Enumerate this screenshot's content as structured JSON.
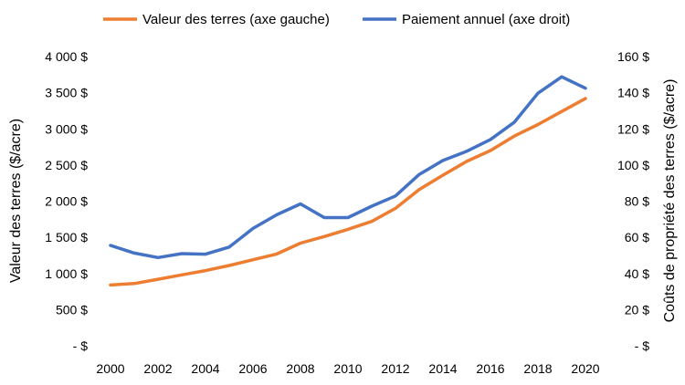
{
  "chart_data": {
    "type": "line",
    "title": "",
    "x": [
      2000,
      2001,
      2002,
      2003,
      2004,
      2005,
      2006,
      2007,
      2008,
      2009,
      2010,
      2011,
      2012,
      2013,
      2014,
      2015,
      2016,
      2017,
      2018,
      2019,
      2020
    ],
    "x_ticks": [
      "2000",
      "2002",
      "2004",
      "2006",
      "2008",
      "2010",
      "2012",
      "2014",
      "2016",
      "2018",
      "2020"
    ],
    "xlim": [
      2000,
      2020
    ],
    "ylabel_left": "Valeur des terres ($/acre)",
    "ylabel_right": "Coûts de propriété des terres ($/acre)",
    "ylim_left": [
      0,
      4000
    ],
    "ylim_right": [
      0,
      160
    ],
    "y_ticks_left": [
      "- $",
      "500 $",
      "1 000 $",
      "1 500 $",
      "2 000 $",
      "2 500 $",
      "3 000 $",
      "3 500 $",
      "4 000 $"
    ],
    "y_ticks_right": [
      "- $",
      "20 $",
      "40 $",
      "60 $",
      "80 $",
      "100 $",
      "120 $",
      "140 $",
      "160 $"
    ],
    "grid": false,
    "legend_position": "top",
    "series": [
      {
        "name": "Valeur des terres (axe gauche)",
        "axis": "left",
        "color": "#ED7D31",
        "values": [
          840,
          860,
          920,
          980,
          1040,
          1110,
          1190,
          1270,
          1420,
          1510,
          1610,
          1720,
          1900,
          2160,
          2360,
          2550,
          2700,
          2900,
          3060,
          3240,
          3420
        ]
      },
      {
        "name": "Paiement annuel (axe droit)",
        "axis": "right",
        "color": "#4472C4",
        "values": [
          55.5,
          51.3,
          48.8,
          51.0,
          50.7,
          54.6,
          64.9,
          72.5,
          78.5,
          70.9,
          70.9,
          77.2,
          82.9,
          94.8,
          102.5,
          107.6,
          114.1,
          123.6,
          139.7,
          148.8,
          142.5
        ]
      }
    ]
  }
}
